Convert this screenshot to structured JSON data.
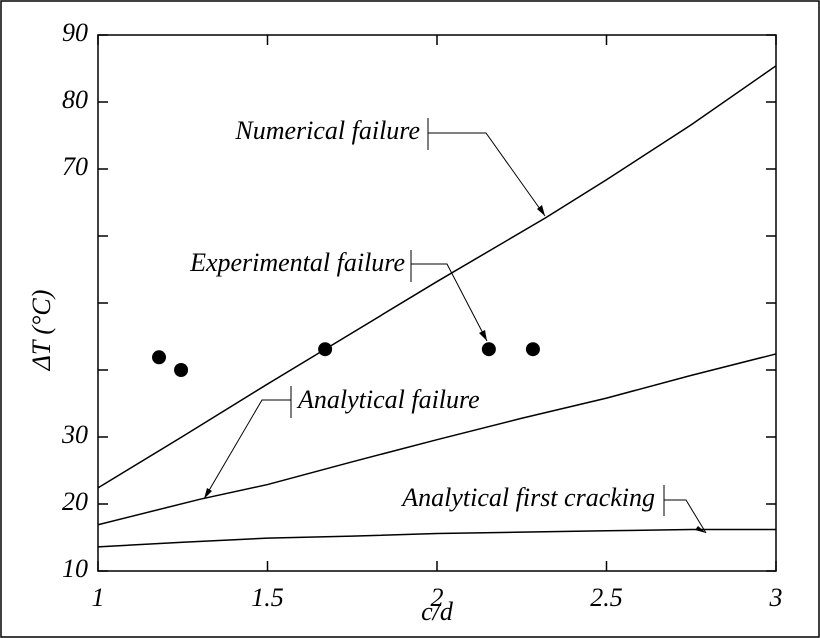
{
  "chart_data": {
    "type": "line",
    "xlabel": "c/d",
    "ylabel": "ΔT (°C)",
    "xlim": [
      1,
      3
    ],
    "ylim": [
      10,
      90
    ],
    "xticks": [
      1,
      1.5,
      2,
      2.5,
      3
    ],
    "yticks": [
      10,
      20,
      30,
      {
        "value": 40,
        "label": null
      },
      {
        "value": 50,
        "label": null
      },
      {
        "value": 60,
        "label": null
      },
      70,
      80,
      90
    ],
    "series": [
      {
        "name": "Numerical failure",
        "type": "line",
        "color": "#000000",
        "x": [
          1,
          1.25,
          1.5,
          1.67,
          2,
          2.32,
          2.5,
          2.75,
          3
        ],
        "values": [
          22.4,
          30.1,
          37.9,
          43.1,
          53.2,
          62.7,
          68.4,
          76.6,
          85.4
        ]
      },
      {
        "name": "Experimental failure",
        "type": "scatter",
        "color": "#000000",
        "x": [
          1.18,
          1.245,
          1.67,
          2.153,
          2.283
        ],
        "values": [
          41.9,
          40,
          43.1,
          43.1,
          43.1
        ]
      },
      {
        "name": "Analytical failure",
        "type": "line",
        "color": "#000000",
        "x": [
          1,
          1.3,
          1.5,
          1.75,
          2,
          2.25,
          2.5,
          2.75,
          3
        ],
        "values": [
          16.9,
          20.7,
          22.9,
          26.3,
          29.6,
          32.8,
          35.8,
          39.2,
          42.4
        ]
      },
      {
        "name": "Analytical first cracking",
        "type": "line",
        "color": "#000000",
        "x": [
          1,
          1.25,
          1.5,
          1.75,
          2,
          2.25,
          2.5,
          2.75,
          3
        ],
        "values": [
          13.6,
          14.3,
          14.9,
          15.2,
          15.6,
          15.8,
          16,
          16.2,
          16.2
        ]
      }
    ]
  }
}
